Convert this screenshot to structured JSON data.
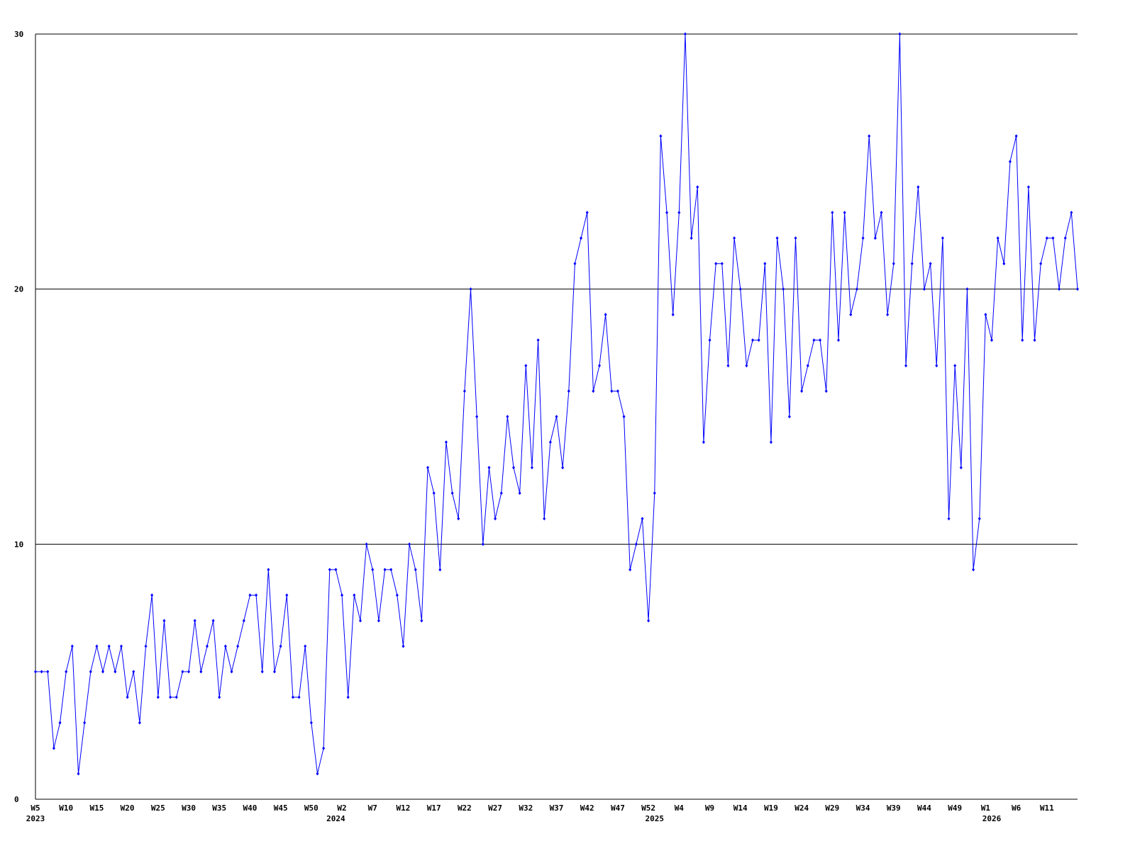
{
  "chart_data": {
    "type": "line",
    "categories": [
      "W5",
      null,
      null,
      null,
      null,
      "W10",
      null,
      null,
      null,
      null,
      "W15",
      null,
      null,
      null,
      null,
      "W20",
      null,
      null,
      null,
      null,
      "W25",
      null,
      null,
      null,
      null,
      "W30",
      null,
      null,
      null,
      null,
      "W35",
      null,
      null,
      null,
      null,
      "W40",
      null,
      null,
      null,
      null,
      "W45",
      null,
      null,
      null,
      null,
      "W50",
      null,
      null,
      null,
      null,
      "W2",
      null,
      null,
      null,
      null,
      "W7",
      null,
      null,
      null,
      null,
      "W12",
      null,
      null,
      null,
      null,
      "W17",
      null,
      null,
      null,
      null,
      "W22",
      null,
      null,
      null,
      null,
      "W27",
      null,
      null,
      null,
      null,
      "W32",
      null,
      null,
      null,
      null,
      "W37",
      null,
      null,
      null,
      null,
      "W42",
      null,
      null,
      null,
      null,
      "W47",
      null,
      null,
      null,
      null,
      "W52",
      null,
      null,
      null,
      null,
      "W4",
      null,
      null,
      null,
      null,
      "W9",
      null,
      null,
      null,
      null,
      "W14",
      null,
      null,
      null,
      null,
      "W19",
      null,
      null,
      null,
      null,
      "W24",
      null,
      null,
      null,
      null,
      "W29",
      null,
      null,
      null,
      null,
      "W34",
      null,
      null,
      null,
      null,
      "W39",
      null,
      null,
      null,
      null,
      "W44",
      null,
      null,
      null,
      null,
      "W49",
      null,
      null,
      null,
      null,
      "W1",
      null,
      null,
      null,
      null,
      "W6",
      null,
      null,
      null,
      null,
      "W11",
      null,
      null,
      null,
      null,
      null
    ],
    "year_labels": [
      "2023",
      null,
      null,
      null,
      null,
      null,
      null,
      null,
      null,
      null,
      null,
      null,
      null,
      null,
      null,
      null,
      null,
      null,
      null,
      null,
      null,
      null,
      null,
      null,
      null,
      null,
      null,
      null,
      null,
      null,
      null,
      null,
      null,
      null,
      null,
      null,
      null,
      null,
      null,
      null,
      null,
      null,
      null,
      null,
      null,
      null,
      null,
      null,
      null,
      "2024",
      null,
      null,
      null,
      null,
      null,
      null,
      null,
      null,
      null,
      null,
      null,
      null,
      null,
      null,
      null,
      null,
      null,
      null,
      null,
      null,
      null,
      null,
      null,
      null,
      null,
      null,
      null,
      null,
      null,
      null,
      null,
      null,
      null,
      null,
      null,
      null,
      null,
      null,
      null,
      null,
      null,
      null,
      null,
      null,
      null,
      null,
      null,
      null,
      null,
      null,
      null,
      "2025",
      null,
      null,
      null,
      null,
      null,
      null,
      null,
      null,
      null,
      null,
      null,
      null,
      null,
      null,
      null,
      null,
      null,
      null,
      null,
      null,
      null,
      null,
      null,
      null,
      null,
      null,
      null,
      null,
      null,
      null,
      null,
      null,
      null,
      null,
      null,
      null,
      null,
      null,
      null,
      null,
      null,
      null,
      null,
      null,
      null,
      null,
      null,
      null,
      null,
      null,
      null,
      null,
      null,
      null,
      "2026",
      null,
      null,
      null,
      null,
      null,
      null,
      null,
      null,
      null,
      null,
      null,
      null,
      null,
      null,
      null
    ],
    "series": [
      {
        "color": "#0000ff",
        "values": [
          5,
          5,
          5,
          2,
          3,
          5,
          6,
          1,
          3,
          5,
          6,
          5,
          6,
          5,
          6,
          4,
          5,
          3,
          6,
          8,
          4,
          7,
          4,
          4,
          5,
          5,
          7,
          5,
          6,
          7,
          4,
          6,
          5,
          6,
          7,
          8,
          8,
          5,
          9,
          5,
          6,
          8,
          4,
          4,
          6,
          3,
          1,
          2,
          9,
          9,
          8,
          4,
          8,
          7,
          10,
          9,
          7,
          9,
          9,
          8,
          6,
          10,
          9,
          7,
          13,
          12,
          9,
          14,
          12,
          11,
          16,
          20,
          15,
          10,
          13,
          11,
          12,
          15,
          13,
          12,
          17,
          13,
          18,
          11,
          14,
          15,
          13,
          16,
          21,
          22,
          23,
          16,
          17,
          19,
          16,
          16,
          15,
          9,
          10,
          11,
          7,
          12,
          26,
          23,
          19,
          23,
          30,
          22,
          24,
          14,
          18,
          21,
          21,
          17,
          22,
          20,
          17,
          18,
          18,
          21,
          14,
          22,
          20,
          15,
          22,
          16,
          17,
          18,
          18,
          16,
          23,
          18,
          23,
          19,
          20,
          22,
          26,
          22,
          23,
          19,
          21,
          30,
          17,
          21,
          24,
          20,
          21,
          17,
          22,
          11,
          17,
          13,
          20,
          9,
          11,
          19,
          18,
          22,
          21,
          25,
          26,
          18,
          24,
          18,
          21,
          22,
          22,
          20,
          22,
          23,
          20
        ]
      }
    ],
    "ylim": [
      0,
      30
    ],
    "yticks": [
      0,
      10,
      20,
      30
    ],
    "grid": true
  }
}
